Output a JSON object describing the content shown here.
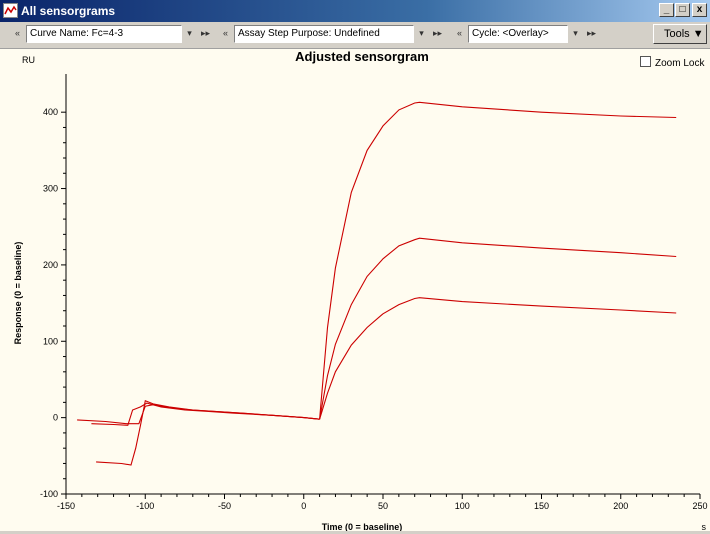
{
  "window": {
    "title": "All sensorgrams",
    "min_glyph": "_",
    "max_glyph": "□",
    "close_glyph": "x"
  },
  "toolbar": {
    "prev_glyph": "«",
    "next_glyph": "▸▸",
    "dropdown_glyph": "▾",
    "curve_name": "Curve Name: Fc=4-3",
    "assay_step": "Assay Step Purpose: Undefined",
    "cycle": "Cycle: <Overlay>",
    "tools_label": "Tools",
    "tools_arrow": "▼"
  },
  "zoom_lock_label": "Zoom Lock",
  "chart_data": {
    "type": "line",
    "title": "Adjusted sensorgram",
    "xlabel": "Time (0 = baseline)",
    "ylabel": "Response (0 = baseline)",
    "y_unit": "RU",
    "x_unit": "s",
    "xlim": [
      -150,
      250
    ],
    "ylim": [
      -100,
      450
    ],
    "xticks": [
      -150,
      -100,
      -50,
      0,
      50,
      100,
      150,
      200,
      250
    ],
    "yticks": [
      -100,
      0,
      100,
      200,
      300,
      400
    ],
    "line_color": "#cc0000",
    "grid": false,
    "series": [
      {
        "x": [
          -143,
          -125,
          -112,
          -104,
          -100,
          -95,
          -85,
          -70,
          -55,
          -40,
          -20,
          0,
          10
        ],
        "y": [
          -3,
          -5,
          -8,
          -8,
          15,
          17,
          13,
          10,
          8,
          6,
          3,
          0,
          -2
        ]
      },
      {
        "x": [
          -134,
          -120,
          -111,
          -108,
          -103,
          -99,
          -90,
          -75,
          -60,
          -45,
          -20,
          0,
          10
        ],
        "y": [
          -8,
          -9,
          -10,
          10,
          14,
          19,
          14,
          10,
          8,
          6,
          3,
          0,
          -2
        ]
      },
      {
        "x": [
          -131,
          -115,
          -109,
          -106,
          -103,
          -100,
          -95,
          -85,
          -70,
          -55,
          -40,
          -20,
          0,
          10
        ],
        "y": [
          -58,
          -60,
          -62,
          -40,
          -10,
          22,
          18,
          14,
          10,
          8,
          6,
          3,
          0,
          -2
        ]
      },
      {
        "x": [
          10,
          15,
          20,
          30,
          40,
          50,
          60,
          70,
          73,
          100,
          150,
          200,
          235
        ],
        "y": [
          -2,
          118,
          196,
          295,
          350,
          382,
          403,
          412,
          413,
          407,
          400,
          395,
          393
        ]
      },
      {
        "x": [
          10,
          15,
          20,
          30,
          40,
          50,
          60,
          70,
          73,
          100,
          150,
          200,
          235
        ],
        "y": [
          -2,
          55,
          96,
          148,
          185,
          208,
          225,
          233,
          235,
          229,
          222,
          216,
          211
        ]
      },
      {
        "x": [
          10,
          15,
          20,
          30,
          40,
          50,
          60,
          70,
          73,
          100,
          150,
          200,
          235
        ],
        "y": [
          -2,
          32,
          60,
          95,
          118,
          136,
          148,
          156,
          157,
          152,
          146,
          141,
          137
        ]
      }
    ]
  }
}
